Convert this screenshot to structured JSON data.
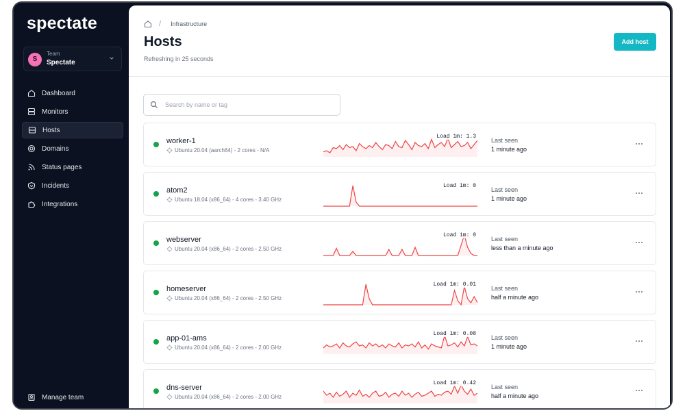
{
  "brand": {
    "logo_text": "spectate"
  },
  "team": {
    "label": "Team",
    "name": "Spectate",
    "avatar_letter": "S",
    "avatar_color": "#f472b6"
  },
  "nav": {
    "items": [
      {
        "label": "Dashboard",
        "icon": "home-icon",
        "active": false
      },
      {
        "label": "Monitors",
        "icon": "server-icon",
        "active": false
      },
      {
        "label": "Hosts",
        "icon": "host-icon",
        "active": true
      },
      {
        "label": "Domains",
        "icon": "globe-icon",
        "active": false
      },
      {
        "label": "Status pages",
        "icon": "rss-icon",
        "active": false
      },
      {
        "label": "Incidents",
        "icon": "alert-icon",
        "active": false
      },
      {
        "label": "Integrations",
        "icon": "puzzle-icon",
        "active": false
      }
    ],
    "manage_team": "Manage team"
  },
  "header": {
    "breadcrumb": "Infrastructure",
    "title": "Hosts",
    "subtitle": "Refreshing in 25 seconds",
    "add_button": "Add host"
  },
  "search": {
    "placeholder": "Search by name or tag"
  },
  "colors": {
    "accent": "#14b8c4",
    "status_ok": "#16a34a",
    "spark": "#ef4444"
  },
  "hosts": [
    {
      "name": "worker-1",
      "meta": "Ubuntu 20.04 (aarch64) - 2 cores - N/A",
      "load": "Load 1m: 1.3",
      "last_seen_label": "Last seen",
      "last_seen": "1 minute ago",
      "series": [
        0.25,
        0.3,
        0.2,
        0.45,
        0.4,
        0.55,
        0.35,
        0.6,
        0.45,
        0.5,
        0.3,
        0.65,
        0.5,
        0.4,
        0.55,
        0.45,
        0.7,
        0.5,
        0.35,
        0.6,
        0.55,
        0.4,
        0.75,
        0.5,
        0.45,
        0.8,
        0.6,
        0.35,
        0.7,
        0.55,
        0.5,
        0.65,
        0.4,
        0.85,
        0.45,
        0.6,
        0.7,
        0.5,
        0.9,
        0.45,
        0.6,
        0.75,
        0.5,
        0.55,
        0.7,
        0.4,
        0.6,
        0.8
      ]
    },
    {
      "name": "atom2",
      "meta": "Ubuntu 18.04 (x86_64) - 4 cores - 3.40 GHz",
      "load": "Load 1m: 0",
      "last_seen_label": "Last seen",
      "last_seen": "1 minute ago",
      "series": [
        0,
        0,
        0,
        0,
        0,
        0,
        0,
        0,
        0,
        1,
        0.2,
        0,
        0,
        0,
        0,
        0,
        0,
        0,
        0,
        0,
        0,
        0,
        0,
        0,
        0,
        0,
        0,
        0,
        0,
        0,
        0,
        0,
        0,
        0,
        0,
        0,
        0,
        0,
        0,
        0,
        0,
        0,
        0,
        0,
        0,
        0,
        0,
        0
      ]
    },
    {
      "name": "webserver",
      "meta": "Ubuntu 20.04 (x86_64) - 2 cores - 2.50 GHz",
      "load": "Load 1m: 0",
      "last_seen_label": "Last seen",
      "last_seen": "less than a minute ago",
      "series": [
        0,
        0,
        0,
        0,
        0.35,
        0,
        0,
        0,
        0,
        0.2,
        0,
        0,
        0,
        0,
        0,
        0,
        0,
        0,
        0,
        0,
        0.3,
        0,
        0,
        0,
        0.3,
        0,
        0,
        0,
        0.4,
        0,
        0,
        0,
        0,
        0,
        0,
        0,
        0,
        0,
        0,
        0,
        0,
        0,
        0.5,
        1,
        0.4,
        0.1,
        0,
        0
      ]
    },
    {
      "name": "homeserver",
      "meta": "Ubuntu 20.04 (x86_64) - 2 cores - 2.50 GHz",
      "load": "Load 1m: 0.01",
      "last_seen_label": "Last seen",
      "last_seen": "half a minute ago",
      "series": [
        0,
        0,
        0,
        0,
        0,
        0,
        0,
        0,
        0,
        0,
        0,
        0,
        0,
        1,
        0.3,
        0,
        0,
        0,
        0,
        0,
        0,
        0,
        0,
        0,
        0,
        0,
        0,
        0,
        0,
        0,
        0,
        0,
        0,
        0,
        0,
        0,
        0,
        0,
        0,
        0,
        0.7,
        0.2,
        0,
        0.9,
        0.3,
        0.1,
        0.4,
        0.1
      ]
    },
    {
      "name": "app-01-ams",
      "meta": "Ubuntu 20.04 (x86_64) - 2 cores - 2.00 GHz",
      "load": "Load 1m: 0.08",
      "last_seen_label": "Last seen",
      "last_seen": "1 minute ago",
      "series": [
        0.3,
        0.45,
        0.35,
        0.4,
        0.5,
        0.3,
        0.55,
        0.4,
        0.35,
        0.5,
        0.6,
        0.4,
        0.45,
        0.3,
        0.55,
        0.4,
        0.5,
        0.35,
        0.45,
        0.3,
        0.5,
        0.4,
        0.35,
        0.55,
        0.3,
        0.45,
        0.4,
        0.5,
        0.35,
        0.6,
        0.3,
        0.45,
        0.25,
        0.5,
        0.4,
        0.35,
        0.3,
        0.9,
        0.4,
        0.45,
        0.55,
        0.35,
        0.6,
        0.4,
        0.85,
        0.45,
        0.5,
        0.4
      ]
    },
    {
      "name": "dns-server",
      "meta": "Ubuntu 20.04 (x86_64) - 2 cores - 2.00 GHz",
      "load": "Load 1m: 0.42",
      "last_seen_label": "Last seen",
      "last_seen": "half a minute ago",
      "series": [
        0.6,
        0.4,
        0.5,
        0.3,
        0.55,
        0.35,
        0.45,
        0.6,
        0.3,
        0.5,
        0.4,
        0.65,
        0.35,
        0.45,
        0.3,
        0.5,
        0.6,
        0.35,
        0.4,
        0.55,
        0.3,
        0.45,
        0.5,
        0.35,
        0.6,
        0.4,
        0.5,
        0.3,
        0.45,
        0.55,
        0.35,
        0.4,
        0.5,
        0.6,
        0.35,
        0.45,
        0.4,
        0.55,
        0.6,
        0.45,
        0.85,
        0.5,
        0.9,
        0.6,
        0.45,
        0.7,
        0.4,
        0.5
      ]
    }
  ]
}
